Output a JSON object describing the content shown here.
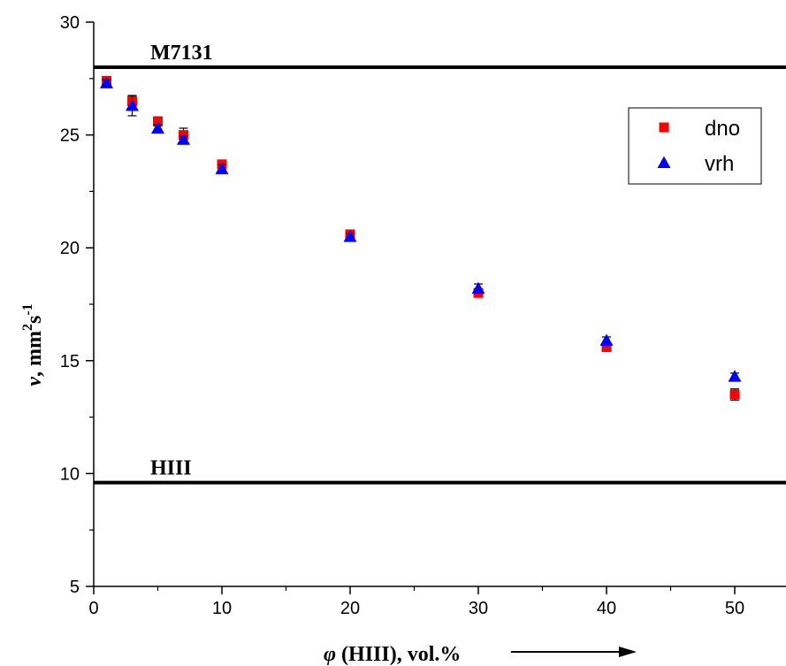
{
  "chart_data": {
    "type": "scatter",
    "title": "",
    "xlabel_symbol": "φ",
    "xlabel_rest": " (HIII), vol.%",
    "ylabel_symbol": "ν",
    "ylabel_base": ", mm",
    "ylabel_sup1": "2",
    "ylabel_mid": "s",
    "ylabel_sup2": "-1",
    "xlim": [
      0,
      54
    ],
    "ylim": [
      5,
      30
    ],
    "xticks": [
      0,
      10,
      20,
      30,
      40,
      50
    ],
    "yticks": [
      5,
      10,
      15,
      20,
      25,
      30
    ],
    "grid": false,
    "legend_position": "top-right",
    "reference_lines": [
      {
        "label": "M7131",
        "y": 28.0
      },
      {
        "label": "HIII",
        "y": 9.6
      }
    ],
    "series": [
      {
        "name": "dno",
        "marker": "square",
        "color": "#ff0000",
        "x": [
          1,
          3,
          5,
          7,
          10,
          20,
          30,
          40,
          50
        ],
        "y": [
          27.4,
          26.5,
          25.6,
          25.0,
          23.7,
          20.6,
          18.0,
          15.6,
          13.5
        ],
        "err": [
          0.15,
          0.2,
          0.2,
          0.3,
          0.15,
          0.15,
          0.1,
          0.15,
          0.25
        ]
      },
      {
        "name": "vrh",
        "marker": "triangle",
        "color": "#0000ff",
        "x": [
          1,
          3,
          5,
          7,
          10,
          20,
          30,
          40,
          50
        ],
        "y": [
          27.3,
          26.3,
          25.3,
          24.8,
          23.5,
          20.5,
          18.2,
          15.9,
          14.3
        ],
        "err": [
          0.15,
          0.45,
          0.15,
          0.15,
          0.2,
          0.15,
          0.2,
          0.15,
          0.15
        ]
      }
    ]
  }
}
